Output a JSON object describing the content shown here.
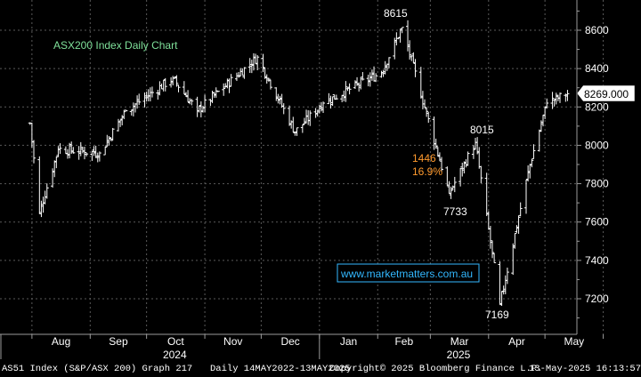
{
  "chart_data": {
    "type": "ohlc",
    "title": "ASX200 Index Daily Chart",
    "last_price": "8269.000",
    "yticks": [
      7200,
      7400,
      7600,
      7800,
      8000,
      8200,
      8400,
      8600
    ],
    "ylim": [
      7080,
      8700
    ],
    "months": [
      "Aug",
      "Sep",
      "Oct",
      "Nov",
      "Dec",
      "Jan",
      "Feb",
      "Mar",
      "Apr",
      "May"
    ],
    "years": [
      "2024",
      "2025"
    ],
    "annotations": {
      "peak": "8615",
      "mar_high": "8015",
      "mar_low": "7733",
      "apr_low": "7169",
      "drop_points": "1446",
      "drop_pct": "16.9%"
    },
    "watermark": "www.marketmatters.com.au",
    "key_points": [
      {
        "date": "2024-07-31",
        "value": 8115
      },
      {
        "date": "2024-08-05",
        "value": 7650
      },
      {
        "date": "2024-08-15",
        "value": 7980
      },
      {
        "date": "2024-09-06",
        "value": 7960
      },
      {
        "date": "2024-09-20",
        "value": 8180
      },
      {
        "date": "2024-10-15",
        "value": 8350
      },
      {
        "date": "2024-10-28",
        "value": 8180
      },
      {
        "date": "2024-11-29",
        "value": 8460
      },
      {
        "date": "2024-12-19",
        "value": 8070
      },
      {
        "date": "2025-01-03",
        "value": 8220
      },
      {
        "date": "2025-02-03",
        "value": 8380
      },
      {
        "date": "2025-02-14",
        "value": 8615
      },
      {
        "date": "2025-03-11",
        "value": 7750
      },
      {
        "date": "2025-03-25",
        "value": 8015
      },
      {
        "date": "2025-04-07",
        "value": 7169
      },
      {
        "date": "2025-04-23",
        "value": 7900
      },
      {
        "date": "2025-05-02",
        "value": 8220
      },
      {
        "date": "2025-05-13",
        "value": 8269
      }
    ]
  },
  "footer": {
    "ticker": "AS51 Index (S&P/ASX 200) Graph 217",
    "range": "Daily 14MAY2022-13MAY2025",
    "copyright": "Copyright© 2025 Bloomberg Finance L.P.",
    "timestamp": "13-May-2025 16:13:57"
  },
  "colors": {
    "background": "#000000",
    "grid": "#5a5a5a",
    "bars": "#ffffff",
    "title": "#7fe09a",
    "drop_label": "#ff9a2e",
    "watermark": "#33b8ff"
  }
}
